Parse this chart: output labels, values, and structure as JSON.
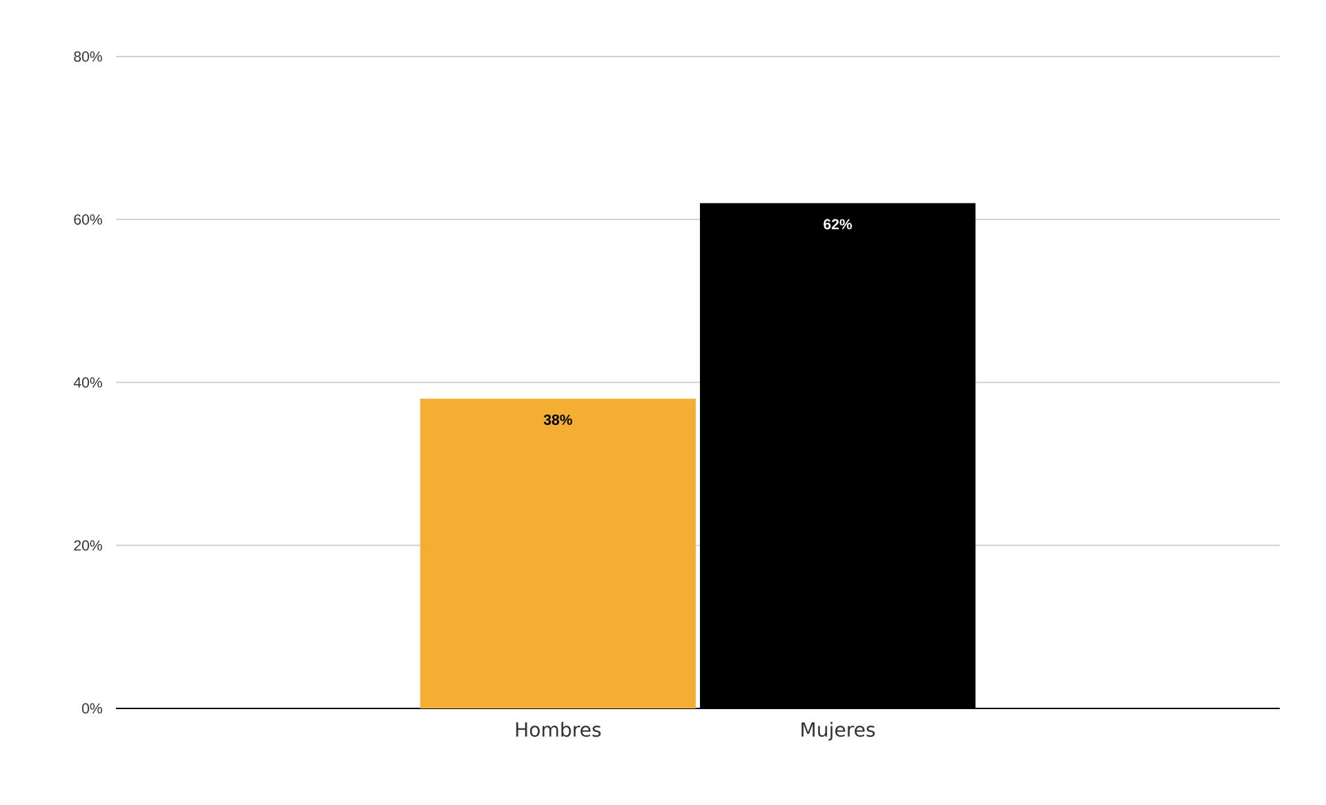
{
  "chart_data": {
    "type": "bar",
    "categories": [
      "Hombres",
      "Mujeres"
    ],
    "values": [
      38,
      62
    ],
    "colors": [
      "#f4ae33",
      "#000000"
    ],
    "value_labels": [
      "38%",
      "62%"
    ],
    "ylim": [
      0,
      80
    ],
    "yticks": [
      {
        "value": 0,
        "label": "0%"
      },
      {
        "value": 20,
        "label": "20%"
      },
      {
        "value": 40,
        "label": "40%"
      },
      {
        "value": 60,
        "label": "60%"
      },
      {
        "value": 80,
        "label": "80%"
      }
    ],
    "grid": "y"
  }
}
